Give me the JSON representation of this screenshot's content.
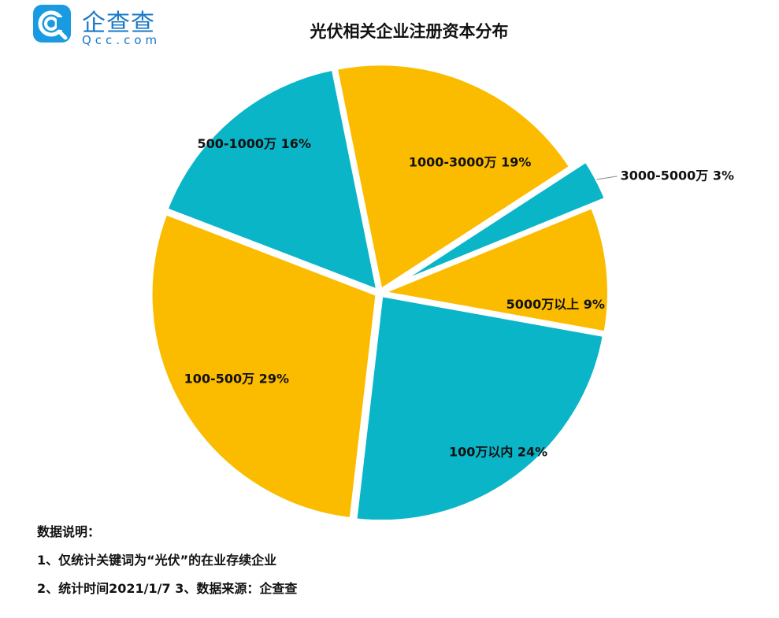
{
  "logo": {
    "name_cn": "企查查",
    "name_en": "Qcc.com"
  },
  "chart_data": {
    "type": "pie",
    "title": "光伏相关企业注册资本分布",
    "slices": [
      {
        "label": "500-1000万 16%",
        "value": 16,
        "color": "#0ab5c8"
      },
      {
        "label": "1000-3000万 19%",
        "value": 19,
        "color": "#fbbc00"
      },
      {
        "label": "3000-5000万 3%",
        "value": 3,
        "color": "#0ab5c8",
        "exploded": true
      },
      {
        "label": "5000万以上 9%",
        "value": 9,
        "color": "#fbbc00"
      },
      {
        "label": "100万以内 24%",
        "value": 24,
        "color": "#0ab5c8"
      },
      {
        "label": "100-500万 29%",
        "value": 29,
        "color": "#fbbc00"
      }
    ],
    "colors": {
      "teal": "#0ab5c8",
      "amber": "#fbbc00"
    }
  },
  "notes": {
    "heading": "数据说明：",
    "line1": "1、仅统计关键词为“光伏”的在业存续企业",
    "line2": "2、统计时间2021/1/7   3、数据来源：企查查"
  }
}
